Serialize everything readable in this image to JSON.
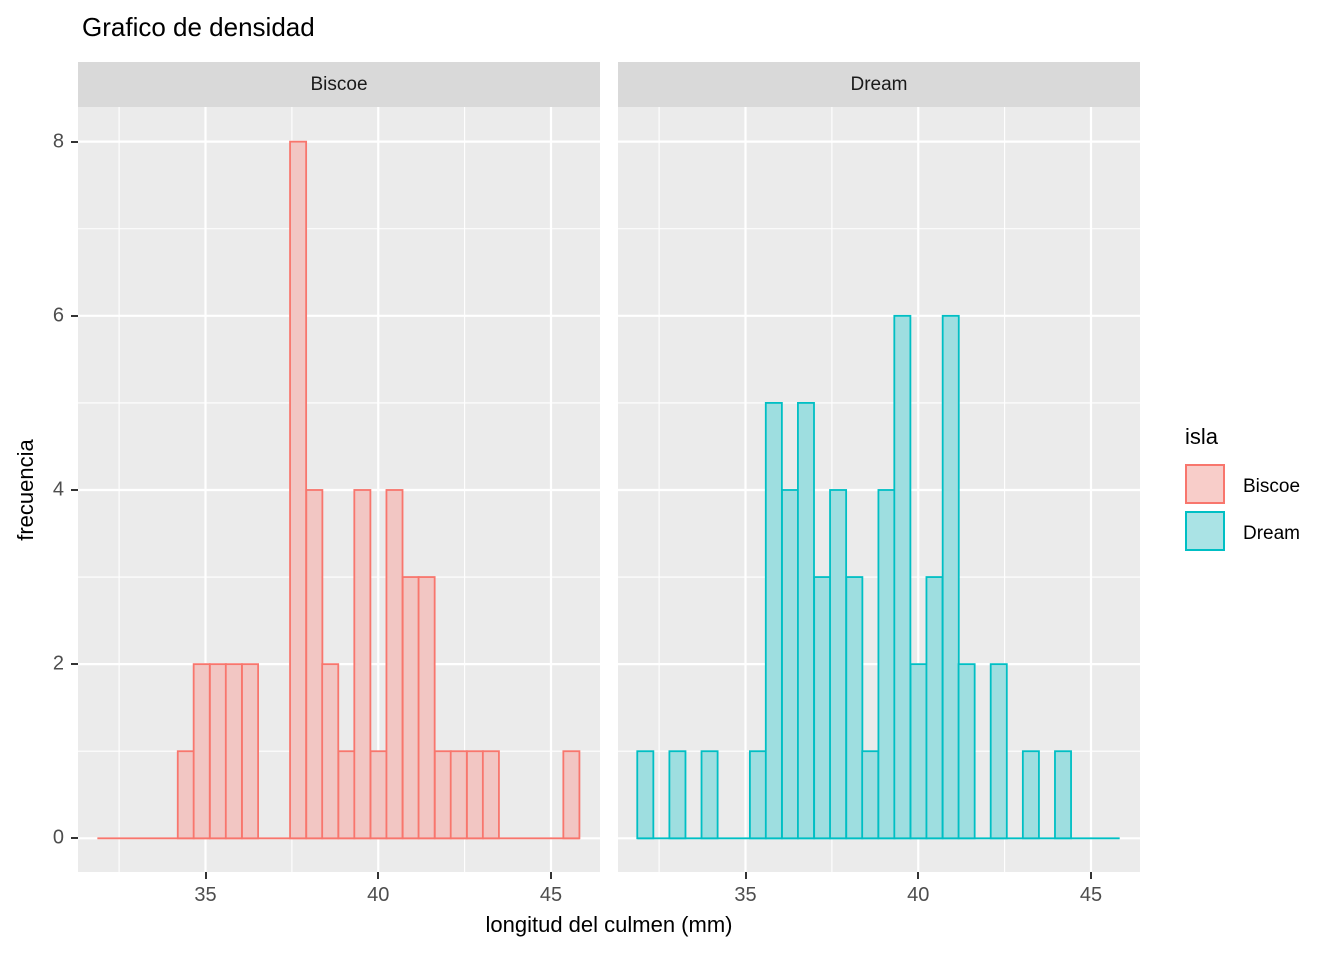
{
  "title": "Grafico de densidad",
  "axes": {
    "x_title": "longitud del culmen (mm)",
    "y_title": "frecuencia",
    "x_ticks": [
      35,
      40,
      45
    ],
    "y_ticks": [
      0,
      2,
      4,
      6,
      8
    ],
    "x_minor": [
      32.5,
      37.5,
      42.5
    ],
    "y_minor": [
      1,
      3,
      5,
      7
    ]
  },
  "legend": {
    "title": "isla",
    "items": [
      {
        "label": "Biscoe",
        "fill": "#f8cdc9",
        "stroke": "#F8766D"
      },
      {
        "label": "Dream",
        "fill": "#aae3e5",
        "stroke": "#00BFC4"
      }
    ]
  },
  "colors": {
    "panel_bg": "#ebebeb",
    "strip_bg": "#d9d9d9",
    "grid": "#ffffff",
    "tick_label": "#4d4d4d",
    "tick_mark": "#333333"
  },
  "chart_data": {
    "type": "bar",
    "subtype": "faceted-histogram",
    "title": "Grafico de densidad",
    "xlabel": "longitud del culmen (mm)",
    "ylabel": "frecuencia",
    "legend_title": "isla",
    "legend_position": "right",
    "grid": true,
    "binwidth": 0.4655,
    "baseline_extent_mm": [
      31.87,
      45.83
    ],
    "xlim": [
      31.31,
      46.42
    ],
    "ylim": [
      -0.39,
      8.4
    ],
    "facets": [
      {
        "name": "Biscoe",
        "fill": "#f2c6c3",
        "stroke": "#F8766D",
        "bars": [
          {
            "x": 34.43,
            "count": 1
          },
          {
            "x": 34.89,
            "count": 2
          },
          {
            "x": 35.36,
            "count": 2
          },
          {
            "x": 35.82,
            "count": 2
          },
          {
            "x": 36.29,
            "count": 2
          },
          {
            "x": 37.68,
            "count": 8
          },
          {
            "x": 38.15,
            "count": 4
          },
          {
            "x": 38.61,
            "count": 2
          },
          {
            "x": 39.08,
            "count": 1
          },
          {
            "x": 39.54,
            "count": 4
          },
          {
            "x": 40.01,
            "count": 1
          },
          {
            "x": 40.47,
            "count": 4
          },
          {
            "x": 40.94,
            "count": 3
          },
          {
            "x": 41.4,
            "count": 3
          },
          {
            "x": 41.87,
            "count": 1
          },
          {
            "x": 42.33,
            "count": 1
          },
          {
            "x": 42.8,
            "count": 1
          },
          {
            "x": 43.26,
            "count": 1
          },
          {
            "x": 45.59,
            "count": 1
          }
        ]
      },
      {
        "name": "Dream",
        "fill": "#9edee0",
        "stroke": "#00BFC4",
        "bars": [
          {
            "x": 32.1,
            "count": 1
          },
          {
            "x": 33.03,
            "count": 1
          },
          {
            "x": 33.96,
            "count": 1
          },
          {
            "x": 35.36,
            "count": 1
          },
          {
            "x": 35.82,
            "count": 5
          },
          {
            "x": 36.29,
            "count": 4
          },
          {
            "x": 36.75,
            "count": 5
          },
          {
            "x": 37.22,
            "count": 3
          },
          {
            "x": 37.68,
            "count": 4
          },
          {
            "x": 38.15,
            "count": 3
          },
          {
            "x": 38.61,
            "count": 1
          },
          {
            "x": 39.08,
            "count": 4
          },
          {
            "x": 39.54,
            "count": 6
          },
          {
            "x": 40.01,
            "count": 2
          },
          {
            "x": 40.47,
            "count": 3
          },
          {
            "x": 40.94,
            "count": 6
          },
          {
            "x": 41.4,
            "count": 2
          },
          {
            "x": 42.33,
            "count": 2
          },
          {
            "x": 43.26,
            "count": 1
          },
          {
            "x": 44.19,
            "count": 1
          }
        ]
      }
    ]
  }
}
